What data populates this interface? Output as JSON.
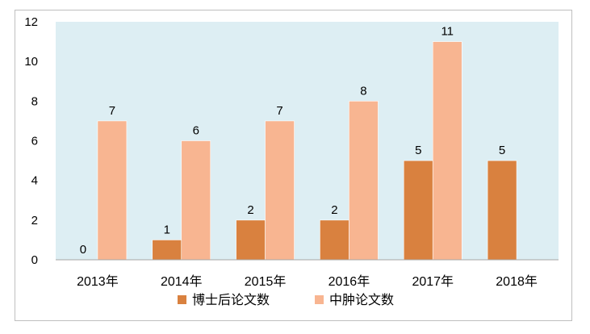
{
  "chart_data": {
    "type": "bar",
    "categories": [
      "2013年",
      "2014年",
      "2015年",
      "2016年",
      "2017年",
      "2018年"
    ],
    "series": [
      {
        "name": "博士后论文数",
        "values": [
          0,
          1,
          2,
          2,
          5,
          5
        ],
        "color": "#d9813f"
      },
      {
        "name": "中肿论文数",
        "values": [
          7,
          6,
          7,
          8,
          11,
          null
        ],
        "color": "#f8b591"
      }
    ],
    "ylim": [
      0,
      12
    ],
    "yticks": [
      0,
      2,
      4,
      6,
      8,
      10,
      12
    ],
    "plot_background": "#ddeef3",
    "grid": false,
    "legend_position": "bottom",
    "title": "",
    "xlabel": "",
    "ylabel": ""
  }
}
